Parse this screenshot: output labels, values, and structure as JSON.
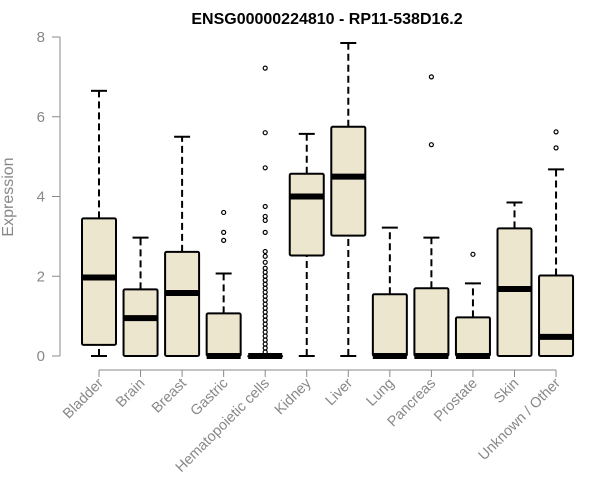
{
  "chart_data": {
    "type": "boxplot",
    "title": "ENSG00000224810 - RP11-538D16.2",
    "xlabel": "",
    "ylabel": "Expression",
    "ylim": [
      0,
      8
    ],
    "yticks": [
      0,
      2,
      4,
      6,
      8
    ],
    "grid": false,
    "box_fill": "#ede6cf",
    "categories": [
      "Bladder",
      "Brain",
      "Breast",
      "Gastric",
      "Hematopoietic cells",
      "Kidney",
      "Liver",
      "Lung",
      "Pancreas",
      "Prostate",
      "Skin",
      "Unknown / Other"
    ],
    "boxes": [
      {
        "category": "Bladder",
        "whisker_low": 0.0,
        "q1": 0.28,
        "median": 1.97,
        "q3": 3.45,
        "whisker_high": 6.65,
        "outliers": []
      },
      {
        "category": "Brain",
        "whisker_low": 0.0,
        "q1": 0.0,
        "median": 0.95,
        "q3": 1.67,
        "whisker_high": 2.97,
        "outliers": []
      },
      {
        "category": "Breast",
        "whisker_low": 0.0,
        "q1": 0.0,
        "median": 1.58,
        "q3": 2.61,
        "whisker_high": 5.5,
        "outliers": []
      },
      {
        "category": "Gastric",
        "whisker_low": 0.0,
        "q1": 0.0,
        "median": 0.0,
        "q3": 1.07,
        "whisker_high": 2.07,
        "outliers": [
          2.9,
          3.1,
          3.6
        ]
      },
      {
        "category": "Hematopoietic cells",
        "whisker_low": 0.0,
        "q1": 0.0,
        "median": 0.0,
        "q3": 0.0,
        "whisker_high": 0.0,
        "outliers": [
          0.1,
          0.2,
          0.3,
          0.4,
          0.5,
          0.6,
          0.7,
          0.8,
          0.9,
          1.0,
          1.1,
          1.2,
          1.3,
          1.4,
          1.5,
          1.6,
          1.7,
          1.8,
          1.9,
          2.0,
          2.1,
          2.2,
          2.35,
          2.5,
          2.62,
          3.1,
          3.4,
          3.5,
          3.75,
          4.72,
          5.6,
          7.22
        ]
      },
      {
        "category": "Kidney",
        "whisker_low": 0.0,
        "q1": 2.52,
        "median": 4.0,
        "q3": 4.57,
        "whisker_high": 5.57,
        "outliers": []
      },
      {
        "category": "Liver",
        "whisker_low": 0.0,
        "q1": 3.02,
        "median": 4.5,
        "q3": 5.75,
        "whisker_high": 7.85,
        "outliers": []
      },
      {
        "category": "Lung",
        "whisker_low": 0.0,
        "q1": 0.0,
        "median": 0.0,
        "q3": 1.55,
        "whisker_high": 3.22,
        "outliers": []
      },
      {
        "category": "Pancreas",
        "whisker_low": 0.0,
        "q1": 0.0,
        "median": 0.0,
        "q3": 1.7,
        "whisker_high": 2.97,
        "outliers": [
          5.3,
          7.0
        ]
      },
      {
        "category": "Prostate",
        "whisker_low": 0.0,
        "q1": 0.0,
        "median": 0.0,
        "q3": 0.97,
        "whisker_high": 1.82,
        "outliers": [
          2.55
        ]
      },
      {
        "category": "Skin",
        "whisker_low": 0.0,
        "q1": 0.0,
        "median": 1.68,
        "q3": 3.2,
        "whisker_high": 3.85,
        "outliers": []
      },
      {
        "category": "Unknown / Other",
        "whisker_low": 0.0,
        "q1": 0.0,
        "median": 0.48,
        "q3": 2.02,
        "whisker_high": 4.68,
        "outliers": [
          5.22,
          5.62
        ]
      }
    ]
  }
}
